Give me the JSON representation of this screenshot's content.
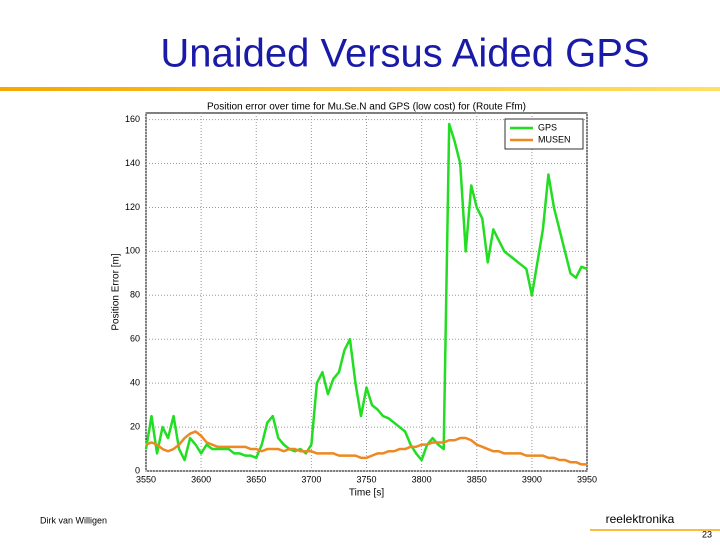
{
  "slide": {
    "title": "Unaided Versus Aided GPS",
    "author": "Dirk van Willigen",
    "company": "reelektronika",
    "page": "23"
  },
  "chart_data": {
    "type": "line",
    "title": "Position error over time for Mu.Se.N and GPS (low cost) for (Route Ffm)",
    "x_label": "Time [s]",
    "y_label": "Position Error [m]",
    "x": [
      3550,
      3555,
      3560,
      3565,
      3570,
      3575,
      3580,
      3585,
      3590,
      3595,
      3600,
      3605,
      3610,
      3615,
      3620,
      3625,
      3630,
      3635,
      3640,
      3645,
      3650,
      3655,
      3660,
      3665,
      3670,
      3675,
      3680,
      3685,
      3690,
      3695,
      3700,
      3705,
      3710,
      3715,
      3720,
      3725,
      3730,
      3735,
      3740,
      3745,
      3750,
      3755,
      3760,
      3765,
      3770,
      3775,
      3780,
      3785,
      3790,
      3795,
      3800,
      3805,
      3810,
      3815,
      3820,
      3825,
      3830,
      3835,
      3840,
      3845,
      3850,
      3855,
      3860,
      3865,
      3870,
      3875,
      3880,
      3885,
      3890,
      3895,
      3900,
      3905,
      3910,
      3915,
      3920,
      3925,
      3930,
      3935,
      3940,
      3945,
      3950
    ],
    "series": [
      {
        "name": "GPS",
        "color": "#22dd22",
        "values": [
          10,
          25,
          8,
          20,
          15,
          25,
          10,
          5,
          15,
          12,
          8,
          12,
          10,
          10,
          10,
          10,
          8,
          8,
          7,
          7,
          6,
          12,
          22,
          25,
          15,
          12,
          10,
          9,
          10,
          8,
          12,
          40,
          45,
          35,
          42,
          45,
          55,
          60,
          40,
          25,
          38,
          30,
          28,
          25,
          24,
          22,
          20,
          18,
          12,
          8,
          5,
          12,
          15,
          12,
          10,
          158,
          150,
          140,
          100,
          130,
          120,
          115,
          95,
          110,
          105,
          100,
          98,
          96,
          94,
          92,
          80,
          95,
          110,
          135,
          120,
          110,
          100,
          90,
          88,
          93,
          92
        ]
      },
      {
        "name": "MUSEN",
        "color": "#ee8822",
        "values": [
          12,
          13,
          12,
          10,
          9,
          10,
          12,
          15,
          17,
          18,
          16,
          13,
          12,
          11,
          11,
          11,
          11,
          11,
          11,
          10,
          10,
          9,
          10,
          10,
          10,
          9,
          10,
          10,
          9,
          9,
          9,
          8,
          8,
          8,
          8,
          7,
          7,
          7,
          7,
          6,
          6,
          7,
          8,
          8,
          9,
          9,
          10,
          10,
          11,
          11,
          12,
          12,
          13,
          13,
          13,
          14,
          14,
          15,
          15,
          14,
          12,
          11,
          10,
          9,
          9,
          8,
          8,
          8,
          8,
          7,
          7,
          7,
          7,
          6,
          6,
          5,
          5,
          4,
          4,
          3,
          3
        ]
      }
    ],
    "xlim": [
      3550,
      3950
    ],
    "xticks": [
      3550,
      3600,
      3650,
      3700,
      3750,
      3800,
      3850,
      3900,
      3950
    ],
    "ylim": [
      0,
      163
    ],
    "yticks": [
      0,
      20,
      40,
      60,
      80,
      100,
      120,
      140,
      160
    ],
    "grid": true,
    "legend": "northeast"
  }
}
